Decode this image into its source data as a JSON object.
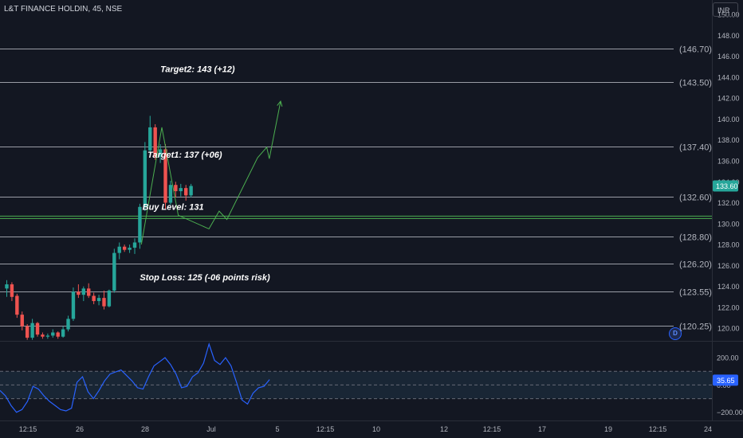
{
  "header": {
    "symbol": "L&T FINANCE HOLDIN, 45, NSE",
    "currency": "INR"
  },
  "dividend_badge": "D",
  "colors": {
    "background": "#131722",
    "up": "#26a69a",
    "down": "#ef5350",
    "level_line": "#b2b5be",
    "buy_line": "#4caf50",
    "projection": "#4caf50",
    "rsi_line": "#2962ff",
    "rsi_band": "#1f3346",
    "price_tag": "#26a69a",
    "rsi_tag": "#2962ff"
  },
  "chart_data": {
    "type": "candlestick",
    "price_axis": {
      "range": [
        118.8,
        150.0
      ],
      "ticks": [
        150,
        148,
        146,
        144,
        142,
        140,
        138,
        136,
        134,
        132,
        130,
        128,
        126,
        124,
        122,
        120
      ],
      "tick_labels": [
        "150.00",
        "148.00",
        "146.00",
        "144.00",
        "142.00",
        "140.00",
        "138.00",
        "136.00",
        "134.00",
        "132.00",
        "130.00",
        "128.00",
        "126.00",
        "124.00",
        "122.00",
        "120.00"
      ]
    },
    "time_axis": {
      "labels": [
        "12:15",
        "26",
        "28",
        "Jul",
        "5",
        "12:15",
        "10",
        "12",
        "12:15",
        "17",
        "19",
        "12:15",
        "24"
      ]
    },
    "current_price": {
      "value": 133.6,
      "label": "133.60"
    },
    "levels": [
      {
        "value": 146.7,
        "label": "(146.70)"
      },
      {
        "value": 143.5,
        "label": "(143.50)"
      },
      {
        "value": 137.4,
        "label": "(137.40)"
      },
      {
        "value": 132.6,
        "label": "(132.60)"
      },
      {
        "value": 128.8,
        "label": "(128.80)"
      },
      {
        "value": 126.2,
        "label": "(126.20)"
      },
      {
        "value": 123.55,
        "label": "(123.55)"
      },
      {
        "value": 120.25,
        "label": "(120.25)"
      }
    ],
    "buy_level": {
      "value": 130.6
    },
    "annotations": [
      {
        "text": "Target2: 143 (+12)",
        "price": 144.5,
        "bar": 30
      },
      {
        "text": "Target1: 137 (+06)",
        "price": 136.3,
        "bar": 27.5
      },
      {
        "text": "Buy Level: 131",
        "price": 131.3,
        "bar": 26.5
      },
      {
        "text": "Stop Loss: 125 (-06 points risk)",
        "price": 124.6,
        "bar": 26
      }
    ],
    "candles": [
      {
        "o": 123.8,
        "h": 124.6,
        "l": 123.0,
        "c": 124.2
      },
      {
        "o": 124.2,
        "h": 124.4,
        "l": 122.6,
        "c": 123.0
      },
      {
        "o": 123.1,
        "h": 123.3,
        "l": 121.0,
        "c": 121.3
      },
      {
        "o": 121.3,
        "h": 121.6,
        "l": 119.8,
        "c": 120.2
      },
      {
        "o": 120.2,
        "h": 120.4,
        "l": 118.9,
        "c": 119.1
      },
      {
        "o": 119.1,
        "h": 120.9,
        "l": 118.9,
        "c": 120.5
      },
      {
        "o": 120.5,
        "h": 120.6,
        "l": 119.2,
        "c": 119.4
      },
      {
        "o": 119.4,
        "h": 119.6,
        "l": 119.0,
        "c": 119.2
      },
      {
        "o": 119.2,
        "h": 119.5,
        "l": 119.0,
        "c": 119.3
      },
      {
        "o": 119.3,
        "h": 119.9,
        "l": 119.1,
        "c": 119.6
      },
      {
        "o": 119.6,
        "h": 119.7,
        "l": 119.0,
        "c": 119.2
      },
      {
        "o": 119.2,
        "h": 120.2,
        "l": 119.1,
        "c": 119.9
      },
      {
        "o": 119.9,
        "h": 121.2,
        "l": 119.7,
        "c": 120.9
      },
      {
        "o": 120.9,
        "h": 123.9,
        "l": 120.7,
        "c": 123.5
      },
      {
        "o": 123.5,
        "h": 124.2,
        "l": 122.9,
        "c": 123.2
      },
      {
        "o": 123.2,
        "h": 124.0,
        "l": 122.6,
        "c": 123.8
      },
      {
        "o": 123.8,
        "h": 124.3,
        "l": 122.9,
        "c": 123.1
      },
      {
        "o": 123.1,
        "h": 123.4,
        "l": 122.3,
        "c": 122.6
      },
      {
        "o": 122.6,
        "h": 123.2,
        "l": 122.2,
        "c": 122.9
      },
      {
        "o": 122.9,
        "h": 123.6,
        "l": 121.8,
        "c": 122.1
      },
      {
        "o": 122.1,
        "h": 123.7,
        "l": 122.0,
        "c": 123.6
      },
      {
        "o": 123.6,
        "h": 127.6,
        "l": 123.4,
        "c": 127.2
      },
      {
        "o": 127.2,
        "h": 128.2,
        "l": 126.6,
        "c": 127.8
      },
      {
        "o": 127.8,
        "h": 128.0,
        "l": 127.3,
        "c": 127.5
      },
      {
        "o": 127.5,
        "h": 128.0,
        "l": 127.2,
        "c": 127.7
      },
      {
        "o": 127.7,
        "h": 128.6,
        "l": 127.1,
        "c": 128.2
      },
      {
        "o": 128.2,
        "h": 131.9,
        "l": 127.6,
        "c": 131.6
      },
      {
        "o": 131.6,
        "h": 137.8,
        "l": 131.2,
        "c": 137.0
      },
      {
        "o": 137.0,
        "h": 140.3,
        "l": 136.6,
        "c": 139.2
      },
      {
        "o": 139.2,
        "h": 139.5,
        "l": 136.1,
        "c": 136.4
      },
      {
        "o": 136.4,
        "h": 137.6,
        "l": 135.8,
        "c": 137.1
      },
      {
        "o": 137.1,
        "h": 137.6,
        "l": 131.4,
        "c": 132.0
      },
      {
        "o": 132.0,
        "h": 134.1,
        "l": 131.8,
        "c": 133.7
      },
      {
        "o": 133.7,
        "h": 134.0,
        "l": 132.5,
        "c": 133.1
      },
      {
        "o": 133.1,
        "h": 133.8,
        "l": 132.6,
        "c": 133.4
      },
      {
        "o": 133.4,
        "h": 133.7,
        "l": 132.2,
        "c": 132.7
      },
      {
        "o": 132.7,
        "h": 133.8,
        "l": 132.5,
        "c": 133.6
      }
    ],
    "projection_path": [
      {
        "bar": 26.3,
        "price": 128.0
      },
      {
        "bar": 30.3,
        "price": 139.2
      },
      {
        "bar": 33.5,
        "price": 130.8
      },
      {
        "bar": 39.5,
        "price": 129.5
      },
      {
        "bar": 41.5,
        "price": 131.2
      },
      {
        "bar": 43.0,
        "price": 130.4
      },
      {
        "bar": 49.0,
        "price": 136.3
      },
      {
        "bar": 50.8,
        "price": 137.3
      },
      {
        "bar": 51.3,
        "price": 136.2
      },
      {
        "bar": 53.5,
        "price": 141.7
      }
    ],
    "rsi": {
      "axis_ticks": [
        200,
        0,
        -200
      ],
      "axis_labels": [
        "200.00",
        "0.00",
        "−200.00"
      ],
      "range": [
        -260,
        300
      ],
      "band": [
        100,
        -100
      ],
      "current": {
        "value": 35.65,
        "label": "35.65"
      },
      "values": [
        -40,
        -80,
        -150,
        -200,
        -180,
        -120,
        -10,
        -30,
        -80,
        -120,
        -150,
        -180,
        -190,
        -170,
        20,
        60,
        -50,
        -100,
        -40,
        30,
        80,
        95,
        110,
        70,
        30,
        -20,
        -30,
        60,
        140,
        170,
        200,
        150,
        80,
        -20,
        -10,
        60,
        90,
        160,
        300,
        180,
        150,
        200,
        140,
        20,
        -110,
        -140,
        -60,
        -20,
        -10,
        40
      ]
    }
  }
}
